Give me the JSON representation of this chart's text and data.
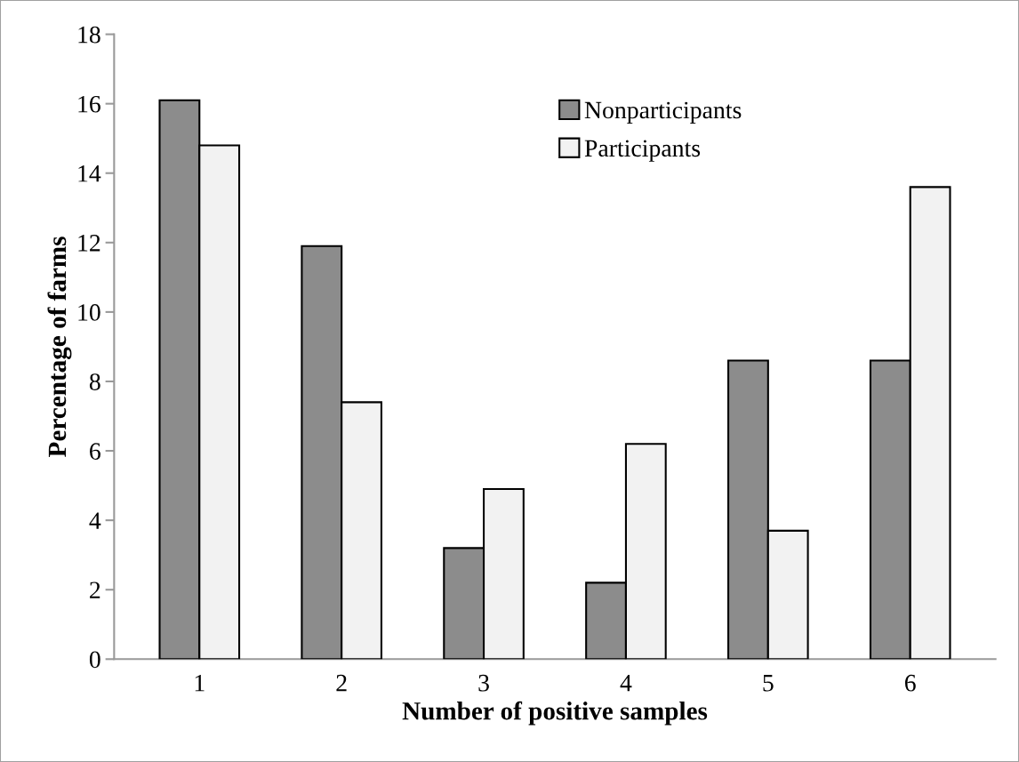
{
  "chart_data": {
    "type": "bar",
    "xlabel": "Number of positive samples",
    "ylabel": "Percentage of farms",
    "categories": [
      "1",
      "2",
      "3",
      "4",
      "5",
      "6"
    ],
    "series": [
      {
        "name": "Nonparticipants",
        "color": "#8c8c8c",
        "values": [
          16.1,
          11.9,
          3.2,
          2.2,
          8.6,
          8.6
        ]
      },
      {
        "name": "Participants",
        "color": "#f2f2f2",
        "values": [
          14.8,
          7.4,
          4.9,
          6.2,
          3.7,
          13.6
        ]
      }
    ],
    "ylim": [
      0,
      18
    ],
    "yticks": [
      0,
      2,
      4,
      6,
      8,
      10,
      12,
      14,
      16,
      18
    ],
    "grid": false,
    "legend": "top"
  }
}
